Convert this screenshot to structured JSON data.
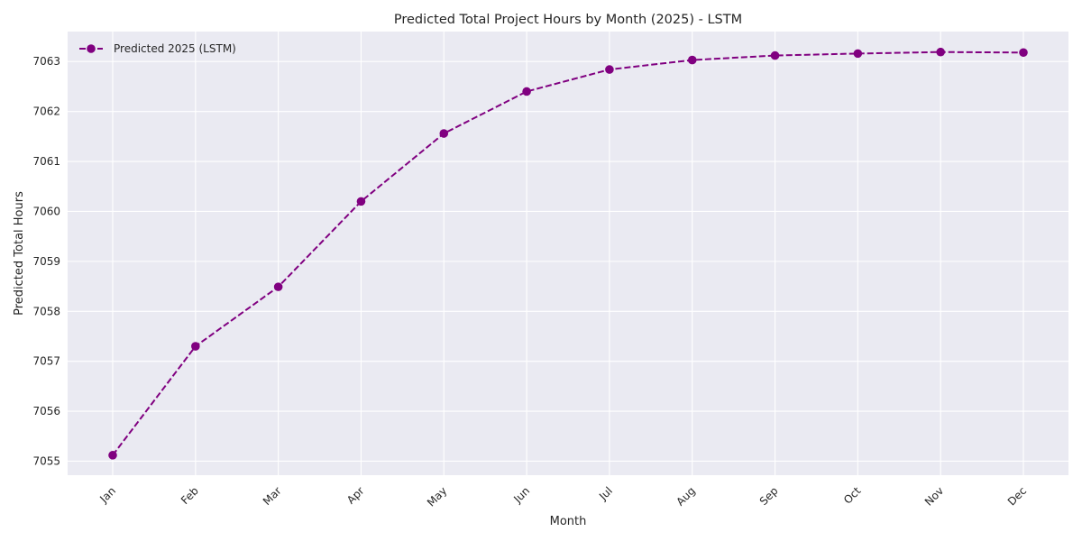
{
  "chart_data": {
    "type": "line",
    "title": "Predicted Total Project Hours by Month (2025) - LSTM",
    "xlabel": "Month",
    "ylabel": "Predicted Total Hours",
    "categories": [
      "Jan",
      "Feb",
      "Mar",
      "Apr",
      "May",
      "Jun",
      "Jul",
      "Aug",
      "Sep",
      "Oct",
      "Nov",
      "Dec"
    ],
    "series": [
      {
        "name": "Predicted 2025 (LSTM)",
        "values": [
          7055.12,
          7057.3,
          7058.49,
          7060.2,
          7061.56,
          7062.4,
          7062.84,
          7063.03,
          7063.12,
          7063.16,
          7063.19,
          7063.18
        ],
        "color": "#800080",
        "linestyle": "dashed",
        "marker": "circle"
      }
    ],
    "yticks": [
      7055,
      7056,
      7057,
      7058,
      7059,
      7060,
      7061,
      7062,
      7063
    ],
    "ylim": [
      7054.72,
      7063.6
    ],
    "grid": true,
    "legend_position": "top-left",
    "background_color": "#eaeaf2",
    "grid_color": "#ffffff"
  }
}
